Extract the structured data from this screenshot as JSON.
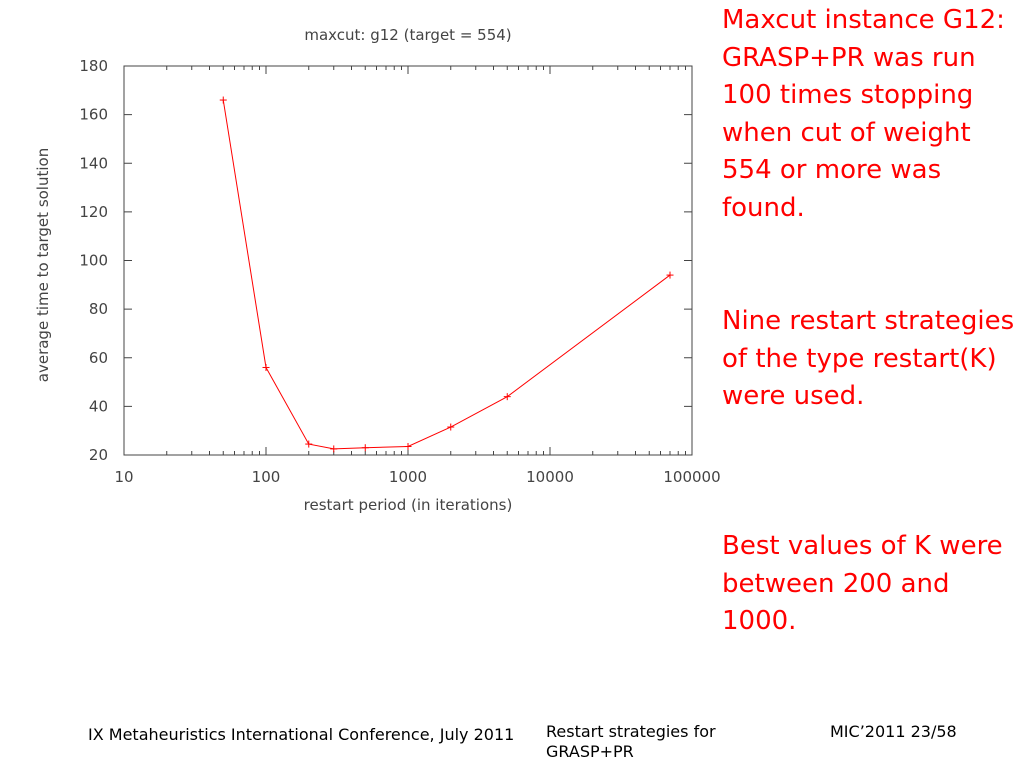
{
  "chart_data": {
    "type": "line",
    "title": "maxcut: g12 (target = 554)",
    "xlabel": "restart period (in iterations)",
    "ylabel": "average time to target solution",
    "xscale": "log",
    "xlim": [
      10,
      100000
    ],
    "ylim": [
      20,
      180
    ],
    "xticks": [
      10,
      100,
      1000,
      10000,
      100000
    ],
    "xtick_labels": [
      "10",
      "100",
      "1000",
      "10000",
      "100000"
    ],
    "yticks": [
      20,
      40,
      60,
      80,
      100,
      120,
      140,
      160,
      180
    ],
    "ytick_labels": [
      "20",
      "40",
      "60",
      "80",
      "100",
      "120",
      "140",
      "160",
      "180"
    ],
    "grid": false,
    "legend": "none",
    "line_color": "#ff0000",
    "series": [
      {
        "x": [
          50,
          100,
          200,
          300,
          500,
          1000,
          2000,
          5000,
          70000
        ],
        "y": [
          166,
          56,
          24.5,
          22.5,
          23,
          23.5,
          31.5,
          44,
          94
        ]
      }
    ]
  },
  "notes": {
    "note1": "Maxcut instance G12: GRASP+PR was run 100 times stopping when cut of weight 554 or more was found.",
    "note2": "Nine restart strategies of the type restart(K) were used.",
    "note3": "Best values of K were between 200 and 1000."
  },
  "footer": {
    "conference": "IX Metaheuristics International Conference, July 2011",
    "topic": "Restart strategies for GRASP+PR",
    "page": "MIC’2011 23/58"
  },
  "colors": {
    "text": "#ff0000",
    "axis": "#444444"
  }
}
